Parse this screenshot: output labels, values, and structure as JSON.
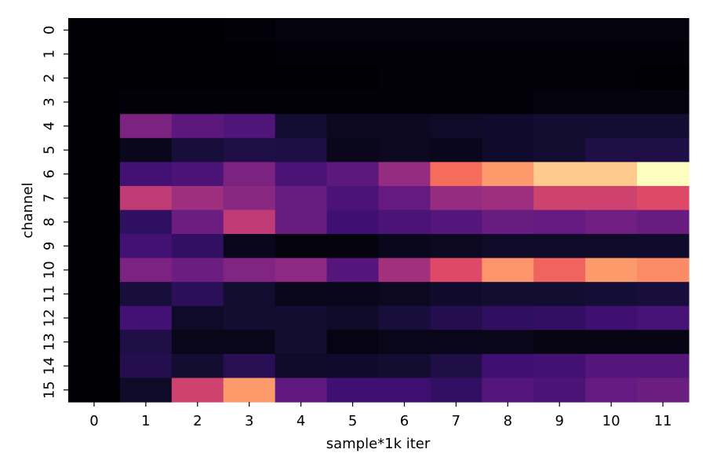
{
  "chart_data": {
    "type": "heatmap",
    "title": "",
    "xlabel": "sample*1k iter",
    "ylabel": "channel",
    "x_categories": [
      "0",
      "1",
      "2",
      "3",
      "4",
      "5",
      "6",
      "7",
      "8",
      "9",
      "10",
      "11"
    ],
    "y_categories": [
      "0",
      "1",
      "2",
      "3",
      "4",
      "5",
      "6",
      "7",
      "8",
      "9",
      "10",
      "11",
      "12",
      "13",
      "14",
      "15"
    ],
    "colormap": "magma",
    "colorbar": false,
    "grid": false,
    "vmin": 0,
    "vmax": 1,
    "values": [
      [
        0.0,
        0.0,
        0.0,
        0.01,
        0.02,
        0.02,
        0.02,
        0.02,
        0.02,
        0.02,
        0.02,
        0.02
      ],
      [
        0.0,
        0.0,
        0.0,
        0.0,
        0.01,
        0.01,
        0.01,
        0.01,
        0.01,
        0.01,
        0.01,
        0.01
      ],
      [
        0.0,
        0.0,
        0.0,
        0.0,
        0.0,
        0.0,
        0.01,
        0.01,
        0.01,
        0.01,
        0.01,
        0.0
      ],
      [
        0.0,
        0.01,
        0.01,
        0.01,
        0.01,
        0.01,
        0.01,
        0.01,
        0.01,
        0.02,
        0.02,
        0.02
      ],
      [
        0.0,
        0.36,
        0.28,
        0.25,
        0.09,
        0.06,
        0.06,
        0.07,
        0.08,
        0.09,
        0.09,
        0.09
      ],
      [
        0.0,
        0.05,
        0.11,
        0.13,
        0.12,
        0.05,
        0.06,
        0.05,
        0.08,
        0.09,
        0.13,
        0.13
      ],
      [
        0.0,
        0.22,
        0.24,
        0.36,
        0.24,
        0.28,
        0.42,
        0.69,
        0.79,
        0.89,
        0.89,
        1.0
      ],
      [
        0.0,
        0.52,
        0.44,
        0.39,
        0.31,
        0.24,
        0.3,
        0.42,
        0.44,
        0.56,
        0.56,
        0.6
      ],
      [
        0.0,
        0.17,
        0.32,
        0.52,
        0.31,
        0.21,
        0.24,
        0.26,
        0.31,
        0.3,
        0.33,
        0.31
      ],
      [
        0.0,
        0.22,
        0.18,
        0.05,
        0.02,
        0.02,
        0.05,
        0.06,
        0.07,
        0.07,
        0.07,
        0.08
      ],
      [
        0.0,
        0.36,
        0.32,
        0.37,
        0.4,
        0.26,
        0.45,
        0.6,
        0.78,
        0.67,
        0.79,
        0.76
      ],
      [
        0.0,
        0.11,
        0.16,
        0.09,
        0.04,
        0.05,
        0.06,
        0.08,
        0.09,
        0.09,
        0.1,
        0.11
      ],
      [
        0.0,
        0.22,
        0.07,
        0.09,
        0.09,
        0.07,
        0.11,
        0.14,
        0.17,
        0.18,
        0.21,
        0.23
      ],
      [
        0.0,
        0.13,
        0.04,
        0.04,
        0.09,
        0.03,
        0.04,
        0.04,
        0.04,
        0.03,
        0.03,
        0.03
      ],
      [
        0.0,
        0.14,
        0.09,
        0.15,
        0.07,
        0.08,
        0.09,
        0.13,
        0.21,
        0.22,
        0.26,
        0.26
      ],
      [
        0.0,
        0.07,
        0.56,
        0.79,
        0.29,
        0.21,
        0.21,
        0.18,
        0.26,
        0.24,
        0.3,
        0.32
      ]
    ]
  }
}
